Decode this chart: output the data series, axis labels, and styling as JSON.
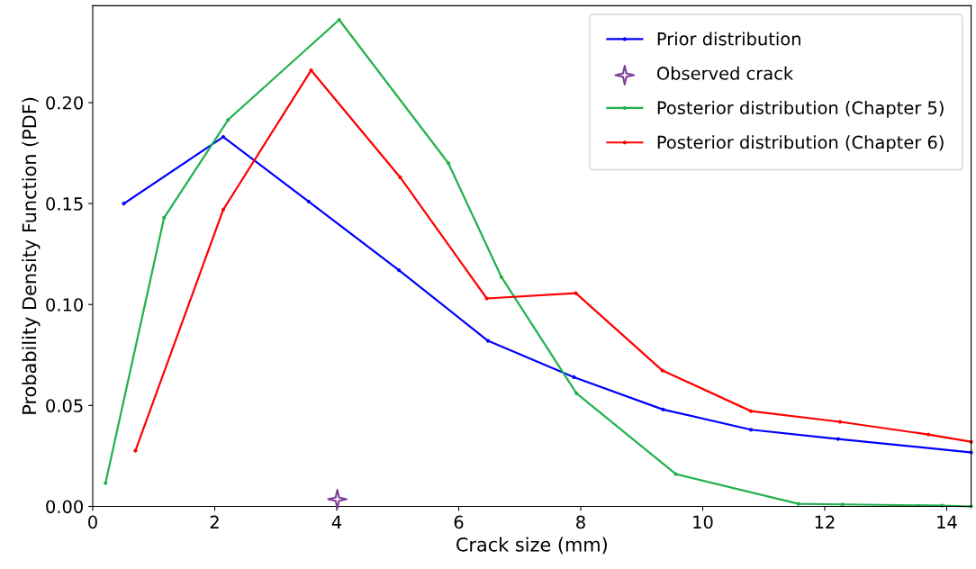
{
  "chart_data": {
    "type": "line",
    "xlabel": "Crack size (mm)",
    "ylabel": "Probability Density Function (PDF)",
    "xlim": [
      0,
      14.4
    ],
    "ylim": [
      0,
      0.248
    ],
    "xticks": [
      0,
      2,
      4,
      6,
      8,
      10,
      12,
      14
    ],
    "yticks": [
      {
        "value": 0,
        "label": "0.00"
      },
      0.05,
      {
        "value": 0.1,
        "label": "0.10"
      },
      0.15,
      {
        "value": 0.2,
        "label": "0.20"
      }
    ],
    "legend": "top right",
    "grid": false,
    "marker": "circle",
    "line_style": "solid",
    "series": [
      {
        "name": "Prior distribution",
        "color": "#0000ff",
        "x": [
          0.51,
          2.14,
          3.54,
          5.02,
          6.48,
          7.89,
          9.35,
          10.79,
          12.22,
          14.4
        ],
        "values": [
          0.15,
          0.183,
          0.151,
          0.117,
          0.082,
          0.064,
          0.048,
          0.038,
          0.0334,
          0.0267
        ]
      },
      {
        "name": "Observed crack",
        "type": "scatter",
        "marker": "star",
        "color": "#7f3f98",
        "x": [
          4.01
        ],
        "values": [
          0.0036
        ]
      },
      {
        "name": "Posterior distribution (Chapter 5)",
        "color": "#22b14c",
        "x": [
          0.21,
          1.17,
          2.22,
          4.04,
          5.83,
          6.7,
          7.93,
          9.56,
          11.57,
          12.29,
          13.92,
          14.4
        ],
        "values": [
          0.0116,
          0.143,
          0.1915,
          0.241,
          0.17,
          0.1136,
          0.056,
          0.016,
          0.0013,
          0.001,
          0.0004,
          0.0
        ]
      },
      {
        "name": "Posterior distribution (Chapter 6)",
        "color": "#ff0000",
        "x": [
          0.7,
          2.14,
          3.58,
          5.04,
          6.46,
          7.92,
          9.34,
          10.79,
          12.25,
          13.7,
          14.4
        ],
        "values": [
          0.0276,
          0.147,
          0.216,
          0.163,
          0.103,
          0.1056,
          0.0673,
          0.0472,
          0.0419,
          0.0356,
          0.032
        ]
      }
    ]
  }
}
